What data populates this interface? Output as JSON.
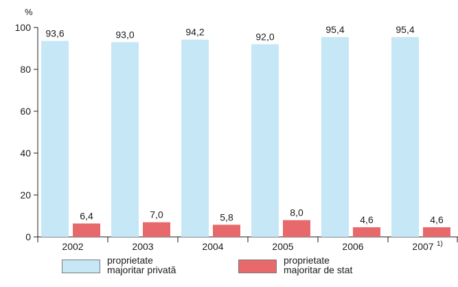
{
  "chart_data": {
    "type": "bar",
    "ylabel": "%",
    "ylim": [
      0,
      100
    ],
    "yticks": [
      0,
      20,
      40,
      60,
      80,
      100
    ],
    "grid": false,
    "categories": [
      "2002",
      "2003",
      "2004",
      "2005",
      "2006",
      "2007"
    ],
    "footnote_mark": "1)",
    "series": [
      {
        "name": "proprietate majoritar privată",
        "label_lines": [
          "proprietate",
          "majoritar privată"
        ],
        "color": "#c6e7f6",
        "values": [
          93.6,
          93.0,
          94.2,
          92.0,
          95.4,
          95.4
        ],
        "labels": [
          "93,6",
          "93,0",
          "94,2",
          "92,0",
          "95,4",
          "95,4"
        ]
      },
      {
        "name": "proprietate majoritar de stat",
        "label_lines": [
          "proprietate",
          "majoritar de stat"
        ],
        "color": "#e8696b",
        "values": [
          6.4,
          7.0,
          5.8,
          8.0,
          4.6,
          4.6
        ],
        "labels": [
          "6,4",
          "7,0",
          "5,8",
          "8,0",
          "4,6",
          "4,6"
        ]
      }
    ],
    "legend_position": "bottom"
  }
}
